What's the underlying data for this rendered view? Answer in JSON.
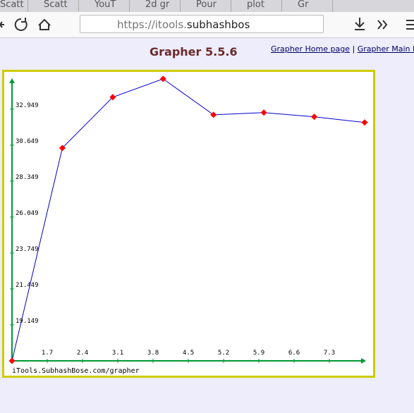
{
  "browser": {
    "tabs": [
      "Scatt",
      "Scatt",
      "YouT",
      "2d gr",
      "Pour",
      "plot",
      "Gr"
    ],
    "url_prefix": "https://itools.",
    "url_host": "subhashbos"
  },
  "header": {
    "links": [
      "Grapher Home page",
      "|",
      "Grapher Main Page"
    ]
  },
  "chart_data": {
    "type": "line",
    "title": "Grapher 5.5.6",
    "footer": "iTools.SubhashBose.com/grapher",
    "x": [
      1,
      2,
      3,
      4,
      5,
      6,
      7,
      8
    ],
    "series": [
      {
        "color": "#0000cc",
        "marker_color": "#ff0000",
        "values": [
          16.849,
          30.469,
          33.716,
          34.89,
          32.59,
          32.73,
          32.46,
          32.1
        ]
      }
    ],
    "xlim": [
      1,
      8
    ],
    "xticks": [
      1.7,
      2.4,
      3.1,
      3.8,
      4.5,
      5.2,
      5.9,
      6.6,
      7.3
    ],
    "ylim": [
      16.849,
      34.84
    ],
    "yticks": [
      19.149,
      21.449,
      23.749,
      26.049,
      28.349,
      30.649,
      32.949
    ],
    "axis_color": "#009933",
    "border_color": "#cccc00"
  }
}
